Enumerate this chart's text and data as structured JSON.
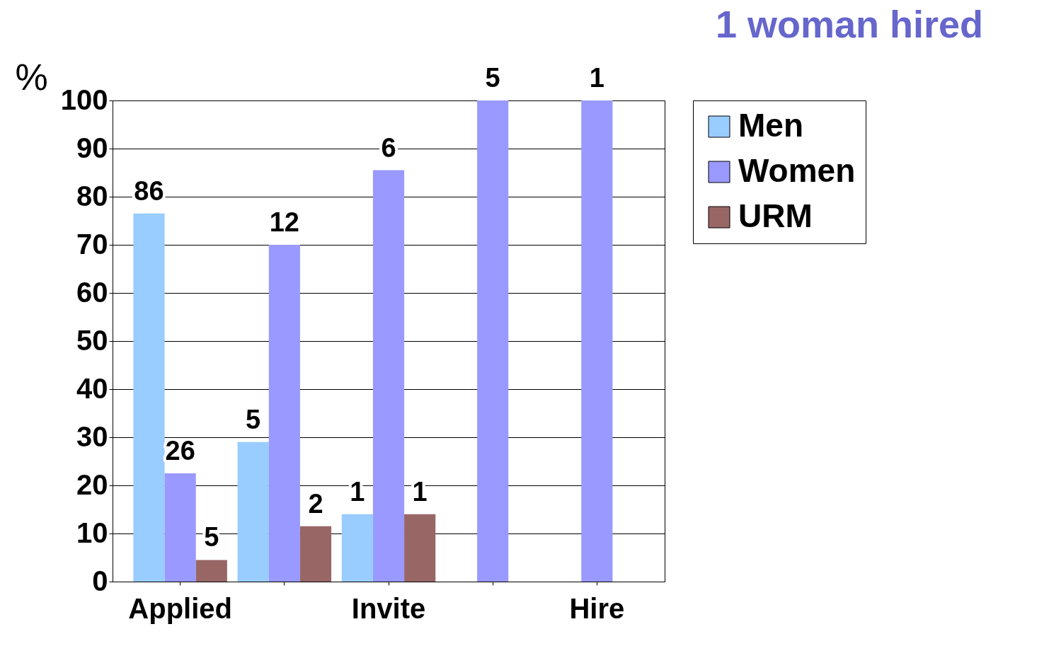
{
  "chart_data": {
    "type": "bar",
    "ylabel": "%",
    "annotations": [
      "1 woman hired",
      "86",
      "5",
      "1",
      "26",
      "12",
      "6",
      "5",
      "1",
      "5",
      "2",
      "1"
    ],
    "categories": [
      "Applied",
      null,
      "Invite",
      null,
      "Hire"
    ],
    "series": [
      {
        "name": "Men",
        "color": "#99ccff",
        "values": [
          76.5,
          29,
          14,
          0,
          0
        ]
      },
      {
        "name": "Women",
        "color": "#9999ff",
        "values": [
          22.5,
          70,
          85.5,
          100,
          100
        ]
      },
      {
        "name": "URM",
        "color": "#996666",
        "values": [
          4.5,
          11.5,
          14,
          0,
          0
        ]
      }
    ],
    "ylim": [
      0,
      100
    ],
    "yticks": [
      0,
      10,
      20,
      30,
      40,
      50,
      60,
      70,
      80,
      90,
      100
    ],
    "grid": "y",
    "legend": "right"
  }
}
